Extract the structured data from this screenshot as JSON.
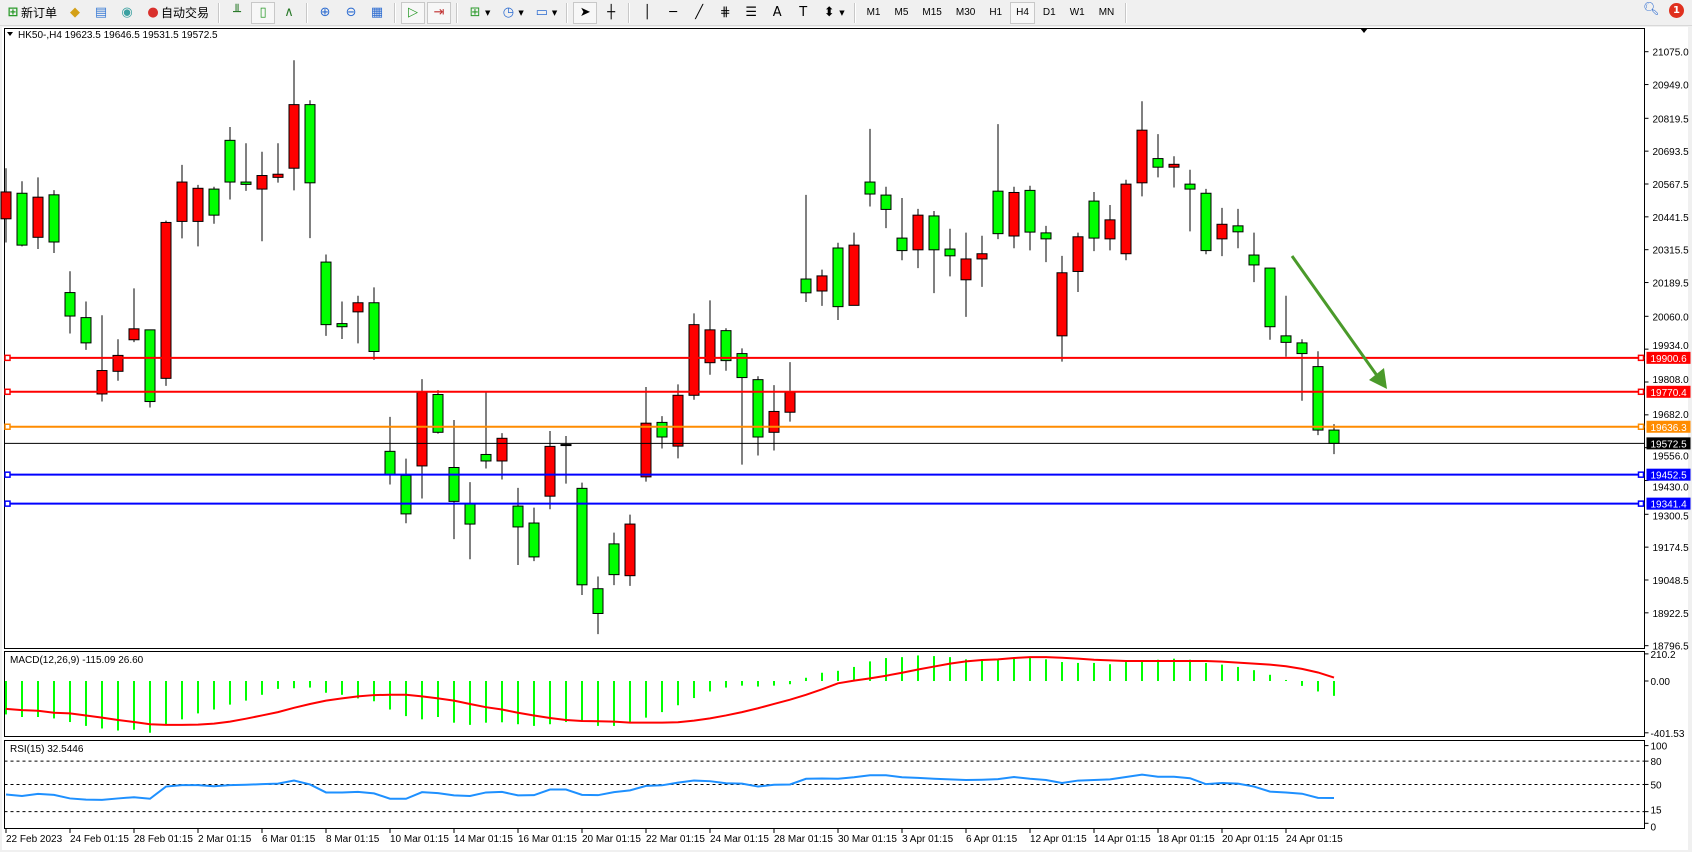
{
  "toolbar": {
    "new_order_label": "新订单",
    "auto_trading_label": "自动交易",
    "timeframes": [
      "M1",
      "M5",
      "M15",
      "M30",
      "H1",
      "H4",
      "D1",
      "W1",
      "MN"
    ],
    "active_timeframe": "H4",
    "notification_count": "1",
    "icons": [
      "new-order-icon",
      "history-center-icon",
      "terminal-icon",
      "signals-icon",
      "auto-trading-icon",
      "bar-chart-icon",
      "candlestick-icon",
      "line-chart-icon",
      "zoom-in-icon",
      "zoom-out-icon",
      "tile-windows-icon",
      "auto-scroll-icon",
      "chart-shift-icon",
      "indicators-icon",
      "periods-icon",
      "templates-icon",
      "cursor-icon",
      "crosshair-icon",
      "vertical-line-icon",
      "horizontal-line-icon",
      "trendline-icon",
      "fibonacci-icon",
      "fibo-fan-icon",
      "text-icon",
      "text-label-icon",
      "arrows-icon",
      "search-icon",
      "notification-icon"
    ]
  },
  "chart": {
    "header": "HK50-,H4  19623.5 19646.5 19531.5 19572.5",
    "colors": {
      "bull": "#ff0000",
      "bear": "#00ff00",
      "background": "#ffffff",
      "macd_hist": "#00ff00",
      "macd_signal": "#ff0000",
      "rsi": "#1e90ff",
      "arrow": "#4a9a2a"
    },
    "price_ticks": [
      "21075.0",
      "20949.0",
      "20819.5",
      "20693.5",
      "20567.5",
      "20441.5",
      "20315.5",
      "20189.5",
      "20060.0",
      "19934.0",
      "19808.0",
      "19682.0",
      "19556.0",
      "19430.0",
      "19300.5",
      "19174.5",
      "19048.5",
      "18922.5",
      "18796.5"
    ],
    "price_lines": [
      {
        "value": "19900.6",
        "color": "#ff0000"
      },
      {
        "value": "19770.4",
        "color": "#ff0000"
      },
      {
        "value": "19636.3",
        "color": "#ff8c00"
      },
      {
        "value": "19572.5",
        "color": "#000000"
      },
      {
        "value": "19452.5",
        "color": "#0000ff"
      },
      {
        "value": "19341.4",
        "color": "#0000ff"
      }
    ],
    "time_labels": [
      "22 Feb 2023",
      "24 Feb 01:15",
      "28 Feb 01:15",
      "2 Mar 01:15",
      "6 Mar 01:15",
      "8 Mar 01:15",
      "10 Mar 01:15",
      "14 Mar 01:15",
      "16 Mar 01:15",
      "20 Mar 01:15",
      "22 Mar 01:15",
      "24 Mar 01:15",
      "28 Mar 01:15",
      "30 Mar 01:15",
      "3 Apr 01:15",
      "6 Apr 01:15",
      "12 Apr 01:15",
      "14 Apr 01:15",
      "18 Apr 01:15",
      "20 Apr 01:15",
      "24 Apr 01:15"
    ],
    "annotation": {
      "type": "arrow",
      "direction": "down-right"
    }
  },
  "chart_data": [
    {
      "type": "candlestick",
      "symbol": "HK50-",
      "timeframe": "H4",
      "ylim": [
        18796.5,
        21075.0
      ],
      "ohlc": [
        [
          20434,
          20628,
          20343,
          20537
        ],
        [
          20532,
          20578,
          20328,
          20333
        ],
        [
          20363,
          20593,
          20318,
          20517
        ],
        [
          20526,
          20544,
          20303,
          20345
        ],
        [
          20151,
          20233,
          19994,
          20061
        ],
        [
          20055,
          20117,
          19931,
          19958
        ],
        [
          19762,
          20064,
          19733,
          19852
        ],
        [
          19849,
          19972,
          19813,
          19910
        ],
        [
          19970,
          20167,
          19961,
          20012
        ],
        [
          20008,
          20008,
          19710,
          19733
        ],
        [
          19822,
          20427,
          19793,
          20420
        ],
        [
          20424,
          20641,
          20359,
          20575
        ],
        [
          20424,
          20564,
          20328,
          20551
        ],
        [
          20548,
          20557,
          20415,
          20448
        ],
        [
          20735,
          20786,
          20508,
          20575
        ],
        [
          20575,
          20724,
          20541,
          20566
        ],
        [
          20548,
          20691,
          20348,
          20600
        ],
        [
          20593,
          20724,
          20573,
          20605
        ],
        [
          20628,
          21042,
          20543,
          20872
        ],
        [
          20872,
          20889,
          20360,
          20572
        ],
        [
          20268,
          20297,
          19985,
          20028
        ],
        [
          20032,
          20117,
          19973,
          20020
        ],
        [
          20077,
          20139,
          19956,
          20112
        ],
        [
          20112,
          20171,
          19893,
          19925
        ],
        [
          19542,
          19674,
          19415,
          19453
        ],
        [
          19450,
          19514,
          19266,
          19302
        ],
        [
          19486,
          19819,
          19361,
          19769
        ],
        [
          19760,
          19777,
          19610,
          19615
        ],
        [
          19480,
          19662,
          19205,
          19350
        ],
        [
          19341,
          19424,
          19128,
          19263
        ],
        [
          19530,
          19769,
          19476,
          19505
        ],
        [
          19505,
          19612,
          19434,
          19592
        ],
        [
          19332,
          19402,
          19106,
          19252
        ],
        [
          19267,
          19326,
          19121,
          19137
        ],
        [
          19370,
          19620,
          19320,
          19561
        ],
        [
          19568,
          19601,
          19418,
          19568
        ],
        [
          19400,
          19422,
          18991,
          19030
        ],
        [
          19015,
          19062,
          18841,
          18920
        ],
        [
          19187,
          19230,
          19029,
          19069
        ],
        [
          19065,
          19299,
          19026,
          19263
        ],
        [
          19444,
          19789,
          19426,
          19650
        ],
        [
          19653,
          19677,
          19553,
          19597
        ],
        [
          19562,
          19799,
          19515,
          19757
        ],
        [
          19757,
          20071,
          19740,
          20028
        ],
        [
          19882,
          20121,
          19836,
          20008
        ],
        [
          20005,
          20014,
          19851,
          19890
        ],
        [
          19917,
          19937,
          19491,
          19825
        ],
        [
          19817,
          19830,
          19526,
          19597
        ],
        [
          19615,
          19796,
          19545,
          19695
        ],
        [
          19692,
          19884,
          19656,
          19769
        ],
        [
          20203,
          20526,
          20115,
          20150
        ],
        [
          20157,
          20239,
          20100,
          20215
        ],
        [
          20322,
          20342,
          20046,
          20097
        ],
        [
          20102,
          20381,
          20102,
          20333
        ],
        [
          20575,
          20779,
          20481,
          20529
        ],
        [
          20525,
          20557,
          20398,
          20470
        ],
        [
          20360,
          20514,
          20275,
          20312
        ],
        [
          20315,
          20472,
          20245,
          20448
        ],
        [
          20445,
          20464,
          20149,
          20315
        ],
        [
          20318,
          20396,
          20213,
          20292
        ],
        [
          20200,
          20381,
          20058,
          20280
        ],
        [
          20280,
          20369,
          20173,
          20300
        ],
        [
          20540,
          20797,
          20356,
          20377
        ],
        [
          20368,
          20557,
          20321,
          20535
        ],
        [
          20543,
          20561,
          20313,
          20383
        ],
        [
          20380,
          20407,
          20268,
          20357
        ],
        [
          19985,
          20292,
          19886,
          20227
        ],
        [
          20232,
          20381,
          20153,
          20365
        ],
        [
          20502,
          20537,
          20310,
          20360
        ],
        [
          20357,
          20487,
          20313,
          20430
        ],
        [
          20300,
          20584,
          20275,
          20567
        ],
        [
          20572,
          20885,
          20520,
          20774
        ],
        [
          20665,
          20759,
          20593,
          20632
        ],
        [
          20632,
          20674,
          20554,
          20643
        ],
        [
          20567,
          20622,
          20386,
          20548
        ],
        [
          20532,
          20549,
          20298,
          20312
        ],
        [
          20357,
          20476,
          20291,
          20413
        ],
        [
          20407,
          20472,
          20321,
          20384
        ],
        [
          20295,
          20381,
          20191,
          20257
        ],
        [
          20245,
          20245,
          19970,
          20020
        ],
        [
          19985,
          20139,
          19905,
          19960
        ],
        [
          19958,
          19972,
          19736,
          19917
        ],
        [
          19867,
          19926,
          19604,
          19623.5
        ],
        [
          19623.5,
          19646.5,
          19531.5,
          19572.5
        ]
      ]
    },
    {
      "type": "bar",
      "title": "MACD(12,26,9) -115.09 26.60",
      "ylim": [
        -401.53,
        210.2
      ],
      "tick_labels": [
        "210.2",
        "0.00",
        "-401.53"
      ],
      "histogram": [
        -259,
        -279,
        -279,
        -290,
        -318,
        -348,
        -368,
        -384,
        -378,
        -401,
        -340,
        -297,
        -251,
        -221,
        -183,
        -152,
        -107,
        -61,
        -56,
        -51,
        -91,
        -107,
        -135,
        -157,
        -221,
        -272,
        -297,
        -279,
        -323,
        -340,
        -323,
        -320,
        -335,
        -348,
        -335,
        -318,
        -315,
        -348,
        -348,
        -318,
        -284,
        -241,
        -188,
        -132,
        -81,
        -51,
        -36,
        -43,
        -36,
        -25,
        25,
        64,
        79,
        109,
        152,
        178,
        185,
        198,
        193,
        185,
        168,
        160,
        168,
        173,
        180,
        168,
        147,
        140,
        140,
        130,
        147,
        160,
        165,
        173,
        165,
        140,
        127,
        109,
        84,
        48,
        8,
        -38,
        -81,
        -115.09
      ],
      "signal": [
        -216,
        -226,
        -231,
        -246,
        -251,
        -267,
        -284,
        -302,
        -318,
        -335,
        -340,
        -340,
        -338,
        -330,
        -315,
        -292,
        -267,
        -241,
        -208,
        -178,
        -152,
        -135,
        -119,
        -109,
        -107,
        -107,
        -119,
        -135,
        -152,
        -178,
        -203,
        -221,
        -246,
        -267,
        -287,
        -302,
        -310,
        -312,
        -315,
        -323,
        -323,
        -323,
        -320,
        -307,
        -290,
        -267,
        -241,
        -211,
        -178,
        -145,
        -107,
        -64,
        -18,
        3,
        20,
        41,
        64,
        89,
        112,
        135,
        152,
        163,
        168,
        178,
        185,
        185,
        180,
        173,
        165,
        160,
        155,
        155,
        155,
        155,
        155,
        155,
        150,
        142,
        135,
        127,
        114,
        94,
        66,
        26.6
      ]
    },
    {
      "type": "line",
      "title": "RSI(15) 32.5446",
      "ylim": [
        0,
        100
      ],
      "levels": [
        80,
        50,
        15
      ],
      "tick_labels": [
        "100",
        "80",
        "50",
        "15",
        "0"
      ],
      "values": [
        37.0,
        35.1,
        37.8,
        36.6,
        32.0,
        30.5,
        30.1,
        32.0,
        33.6,
        31.6,
        47.3,
        49.2,
        49.2,
        47.7,
        49.2,
        49.6,
        50.4,
        51.1,
        55.0,
        50.0,
        39.7,
        39.7,
        40.4,
        38.5,
        31.6,
        31.6,
        40.1,
        38.9,
        35.9,
        35.1,
        39.7,
        40.4,
        35.9,
        36.2,
        43.5,
        43.5,
        36.6,
        36.2,
        40.1,
        42.4,
        48.1,
        48.9,
        52.3,
        55.0,
        54.2,
        51.5,
        51.1,
        47.3,
        49.6,
        50.0,
        57.3,
        57.6,
        57.3,
        59.2,
        61.9,
        61.9,
        59.2,
        58.4,
        57.3,
        56.5,
        55.7,
        56.1,
        56.9,
        59.6,
        57.3,
        55.7,
        51.9,
        55.0,
        55.7,
        56.5,
        59.6,
        62.6,
        59.9,
        59.9,
        58.0,
        50.4,
        51.9,
        51.1,
        47.3,
        40.8,
        39.7,
        38.1,
        32.8,
        32.5446
      ]
    }
  ]
}
